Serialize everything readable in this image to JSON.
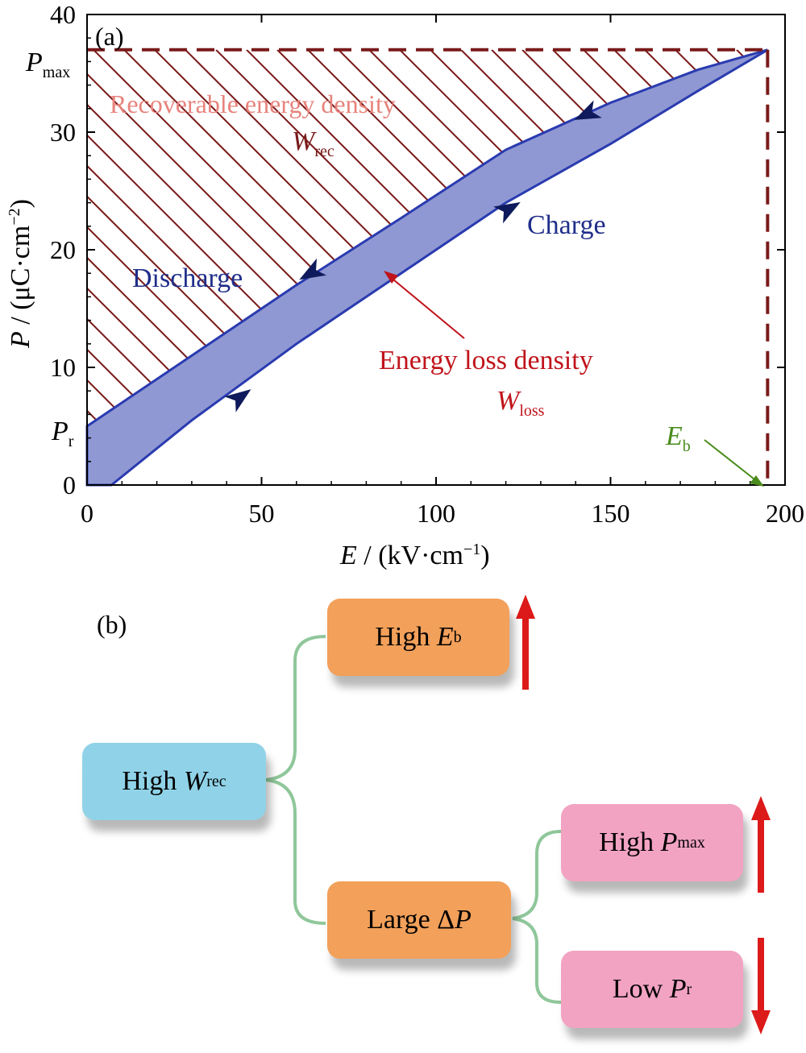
{
  "panel_a": {
    "label": "(a)",
    "x_axis": {
      "title_var": "E",
      "title_unit": " / (kV·cm",
      "title_exp": "−1",
      "title_close": ")",
      "ticks": [
        "0",
        "50",
        "100",
        "150",
        "200"
      ],
      "range": [
        0,
        200
      ]
    },
    "y_axis": {
      "title_var": "P",
      "title_unit": " / (μC·cm",
      "title_exp": "−2",
      "title_close": ")",
      "ticks": [
        "0",
        "10",
        "20",
        "30",
        "40"
      ],
      "range": [
        0,
        40
      ]
    },
    "p_max_label": {
      "main": "P",
      "sub": "max"
    },
    "p_r_label": {
      "main": "P",
      "sub": "r"
    },
    "eb_label": {
      "main": "E",
      "sub": "b"
    },
    "recoverable_label": "Recoverable energy density",
    "wrec_label": {
      "main": "W",
      "sub": "rec"
    },
    "discharge_label": "Discharge",
    "charge_label": "Charge",
    "loss_label": "Energy loss density",
    "wloss_label": {
      "main": "W",
      "sub": "loss"
    },
    "colors": {
      "hatch": "#7a1a1a",
      "loop_fill": "#8f98d2",
      "loop_edge": "#2a3bb0",
      "arrowhead": "#0f1a5c",
      "loss_text": "#c0141c",
      "recoverable_text": "#e7837c",
      "eb_text": "#4a8c1c",
      "blue_text": "#1f2e8a"
    },
    "chart_data": {
      "type": "line",
      "xlabel": "E / (kV·cm−1)",
      "ylabel": "P / (μC·cm−2)",
      "xlim": [
        0,
        200
      ],
      "ylim": [
        0,
        40
      ],
      "series": [
        {
          "name": "Charge",
          "x": [
            7,
            30,
            60,
            90,
            120,
            150,
            175,
            195
          ],
          "y": [
            0,
            5.5,
            12,
            18,
            24,
            29,
            33.5,
            37
          ]
        },
        {
          "name": "Discharge",
          "x": [
            0,
            30,
            60,
            90,
            120,
            150,
            175,
            195
          ],
          "y": [
            5,
            11,
            17,
            22.7,
            28.5,
            32.5,
            35.3,
            37
          ]
        }
      ],
      "annotations": {
        "P_max": 37,
        "P_r": 5,
        "E_b": 195
      }
    }
  },
  "panel_b": {
    "label": "(b)",
    "root": {
      "prefix": "High ",
      "var": "W",
      "sub": "rec"
    },
    "high_eb": {
      "prefix": "High ",
      "var": "E",
      "sub": "b"
    },
    "large_dp": {
      "prefix": "Large Δ",
      "var": "P",
      "sub": ""
    },
    "high_pmax": {
      "prefix": "High ",
      "var": "P",
      "sub": "max"
    },
    "low_pr": {
      "prefix": "Low ",
      "var": "P",
      "sub": "r"
    },
    "colors": {
      "root_box": "#90d3e8",
      "orange_box": "#f2a05a",
      "pink_box": "#f2a3c2",
      "connector": "#8fc79a",
      "arrow": "#dd1a1a"
    },
    "arrows": [
      "up",
      "up",
      "down"
    ]
  }
}
